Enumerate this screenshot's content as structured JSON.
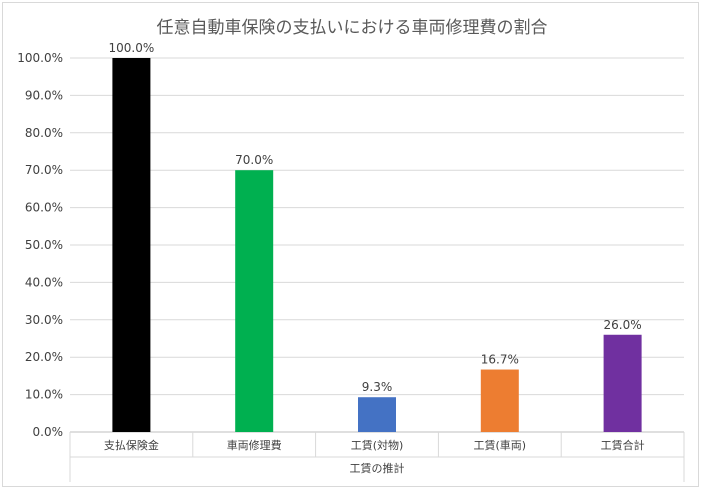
{
  "chart_data": {
    "type": "bar",
    "title": "任意自動車保険の支払いにおける車両修理費の割合",
    "xlabel": "工賃の推計",
    "ylabel": "",
    "categories": [
      "支払保険金",
      "車両修理費",
      "工賃(対物)",
      "工賃(車両)",
      "工賃合計"
    ],
    "values": [
      100.0,
      70.0,
      9.3,
      16.7,
      26.0
    ],
    "data_labels": [
      "100.0%",
      "70.0%",
      "9.3%",
      "16.7%",
      "26.0%"
    ],
    "bar_colors": [
      "#000000",
      "#00b050",
      "#4472c4",
      "#ed7d31",
      "#7030a0"
    ],
    "ylim": [
      0,
      100
    ],
    "yticks": [
      "0.0%",
      "10.0%",
      "20.0%",
      "30.0%",
      "40.0%",
      "50.0%",
      "60.0%",
      "70.0%",
      "80.0%",
      "90.0%",
      "100.0%"
    ],
    "grid": true,
    "legend": "none"
  }
}
